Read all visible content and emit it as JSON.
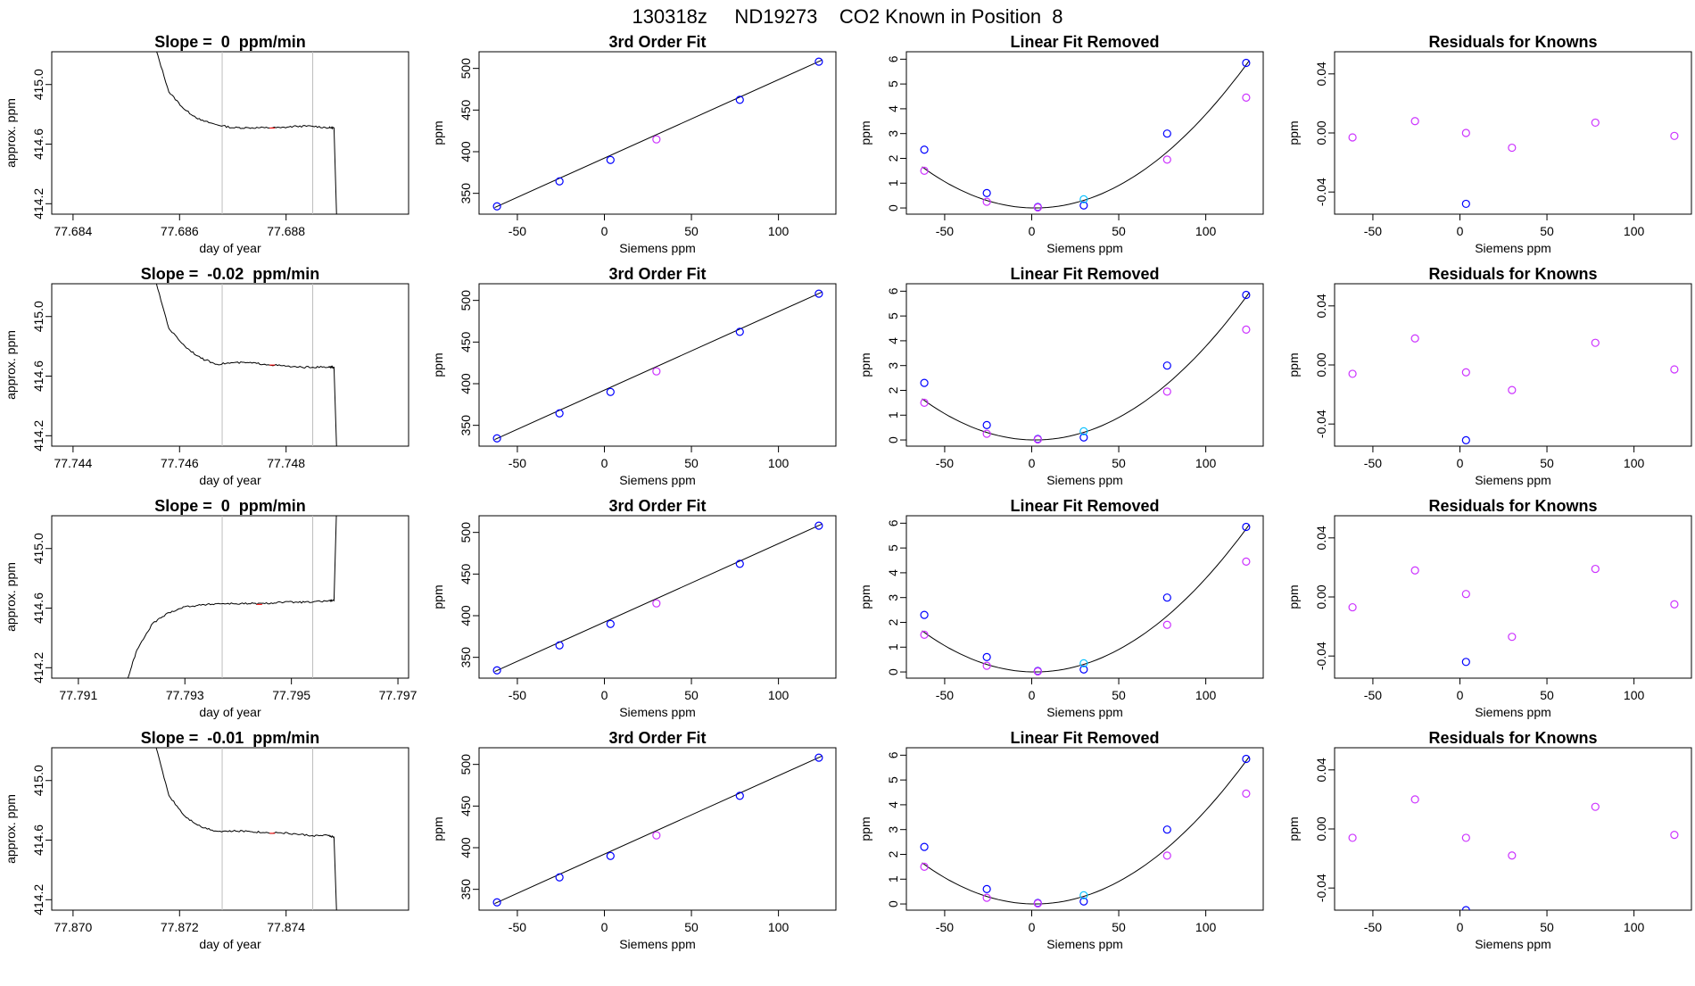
{
  "page_title": "130318z     ND19273    CO2 Known in Position  8",
  "colors": {
    "trace": "#000000",
    "guide_line": "#bebebe",
    "cursor_mark": "#ff0000",
    "known_point": "#0000ff",
    "light_point": "#00bfff",
    "magenta_point": "#cc33ff",
    "fit_curve": "#000000"
  },
  "x_axis_label_siemens": "Siemens ppm",
  "x_axis_label_day": "day of year",
  "chart_data": [
    {
      "type": "line",
      "title": "Slope =  0  ppm/min",
      "xlabel": "day of year",
      "ylabel": "approx. ppm",
      "xlim": [
        77.6836,
        77.6903
      ],
      "ylim": [
        414.13,
        415.22
      ],
      "xticks": [
        "77.684",
        "77.686",
        "77.688"
      ],
      "yticks": [
        "414.2",
        "414.6",
        "415.0"
      ],
      "vlines": [
        77.6868,
        77.6885
      ],
      "x": [
        77.6855,
        77.6858,
        77.6861,
        77.6864,
        77.6867,
        77.687,
        77.6873,
        77.6876,
        77.6879,
        77.6882,
        77.6885,
        77.6888,
        77.6889,
        77.68895
      ],
      "y": [
        415.3,
        414.95,
        414.83,
        414.76,
        414.73,
        414.71,
        414.71,
        414.71,
        414.71,
        414.72,
        414.72,
        414.71,
        414.71,
        414.1
      ]
    },
    {
      "type": "scatter",
      "title": "3rd Order Fit",
      "xlabel": "Siemens ppm",
      "ylabel": "ppm",
      "xlim": [
        -72,
        133
      ],
      "ylim": [
        325,
        520
      ],
      "xticks": [
        -50,
        0,
        50,
        100
      ],
      "yticks": [
        350,
        400,
        450,
        500
      ],
      "series": [
        {
          "color": "blue",
          "x": [
            -61.7,
            -25.8,
            3.5,
            77.8,
            123.2
          ],
          "y": [
            334.4,
            364.4,
            390.1,
            462.3,
            508.1
          ]
        },
        {
          "color": "magenta",
          "x": [
            29.9
          ],
          "y": [
            414.8
          ]
        }
      ],
      "fit_line": [
        [
          -63,
          333
        ],
        [
          125,
          510
        ]
      ]
    },
    {
      "type": "scatter",
      "title": "Linear Fit Removed",
      "xlabel": "Siemens ppm",
      "ylabel": "ppm",
      "xlim": [
        -72,
        133
      ],
      "ylim": [
        -0.25,
        6.3
      ],
      "xticks": [
        -50,
        0,
        50,
        100
      ],
      "yticks": [
        0,
        1,
        2,
        3,
        4,
        5,
        6
      ],
      "series": [
        {
          "color": "blue",
          "x": [
            -61.7,
            -25.8,
            3.5,
            29.9,
            77.8,
            123.2
          ],
          "y": [
            2.35,
            0.6,
            0.04,
            0.1,
            3.0,
            5.85
          ]
        },
        {
          "color": "light",
          "x": [
            29.9
          ],
          "y": [
            0.35
          ]
        },
        {
          "color": "magenta",
          "x": [
            -61.7,
            -25.8,
            3.5,
            77.8,
            123.2
          ],
          "y": [
            1.5,
            0.25,
            0.02,
            1.95,
            4.45
          ]
        }
      ],
      "fit_curve": {
        "a": 0.000393,
        "vertex": 2,
        "xmin": -63,
        "xmax": 125
      }
    },
    {
      "type": "scatter",
      "title": "Residuals for Knowns",
      "xlabel": "Siemens ppm",
      "ylabel": "ppm",
      "xlim": [
        -72,
        133
      ],
      "ylim": [
        -0.055,
        0.055
      ],
      "xticks": [
        -50,
        0,
        50,
        100
      ],
      "yticks": [
        "-0.04",
        "0.00",
        "0.04"
      ],
      "series": [
        {
          "color": "magenta",
          "x": [
            -61.7,
            -25.8,
            3.5,
            29.9,
            77.8,
            123.2
          ],
          "y": [
            -0.003,
            0.008,
            0.0,
            -0.01,
            0.007,
            -0.002
          ]
        },
        {
          "color": "blue",
          "x": [
            3.5
          ],
          "y": [
            -0.048
          ]
        }
      ]
    },
    {
      "type": "line",
      "title": "Slope =  -0.02  ppm/min",
      "xlabel": "day of year",
      "ylabel": "approx. ppm",
      "xlim": [
        77.7436,
        77.7503
      ],
      "ylim": [
        414.13,
        415.22
      ],
      "xticks": [
        "77.744",
        "77.746",
        "77.748"
      ],
      "yticks": [
        "414.2",
        "414.6",
        "415.0"
      ],
      "vlines": [
        77.7468,
        77.7485
      ],
      "x": [
        77.7455,
        77.7458,
        77.7461,
        77.7464,
        77.7467,
        77.747,
        77.7473,
        77.7476,
        77.7479,
        77.7482,
        77.7485,
        77.7488,
        77.7489,
        77.74895
      ],
      "y": [
        415.3,
        414.92,
        414.8,
        414.72,
        414.68,
        414.69,
        414.69,
        414.68,
        414.67,
        414.66,
        414.66,
        414.66,
        414.66,
        414.1
      ]
    },
    {
      "type": "scatter",
      "title": "3rd Order Fit",
      "xlabel": "Siemens ppm",
      "ylabel": "ppm",
      "xlim": [
        -72,
        133
      ],
      "ylim": [
        325,
        520
      ],
      "xticks": [
        -50,
        0,
        50,
        100
      ],
      "yticks": [
        350,
        400,
        450,
        500
      ],
      "series": [
        {
          "color": "blue",
          "x": [
            -61.7,
            -25.8,
            3.5,
            77.8,
            123.2
          ],
          "y": [
            334.4,
            364.4,
            390.1,
            462.3,
            508.1
          ]
        },
        {
          "color": "magenta",
          "x": [
            29.9
          ],
          "y": [
            414.8
          ]
        }
      ],
      "fit_line": [
        [
          -63,
          333
        ],
        [
          125,
          510
        ]
      ]
    },
    {
      "type": "scatter",
      "title": "Linear Fit Removed",
      "xlabel": "Siemens ppm",
      "ylabel": "ppm",
      "xlim": [
        -72,
        133
      ],
      "ylim": [
        -0.25,
        6.3
      ],
      "xticks": [
        -50,
        0,
        50,
        100
      ],
      "yticks": [
        0,
        1,
        2,
        3,
        4,
        5,
        6
      ],
      "series": [
        {
          "color": "blue",
          "x": [
            -61.7,
            -25.8,
            3.5,
            29.9,
            77.8,
            123.2
          ],
          "y": [
            2.3,
            0.6,
            0.04,
            0.1,
            3.0,
            5.85
          ]
        },
        {
          "color": "light",
          "x": [
            29.9
          ],
          "y": [
            0.35
          ]
        },
        {
          "color": "magenta",
          "x": [
            -61.7,
            -25.8,
            3.5,
            77.8,
            123.2
          ],
          "y": [
            1.5,
            0.25,
            0.02,
            1.95,
            4.45
          ]
        }
      ],
      "fit_curve": {
        "a": 0.000393,
        "vertex": 2,
        "xmin": -63,
        "xmax": 125
      }
    },
    {
      "type": "scatter",
      "title": "Residuals for Knowns",
      "xlabel": "Siemens ppm",
      "ylabel": "ppm",
      "xlim": [
        -72,
        133
      ],
      "ylim": [
        -0.055,
        0.055
      ],
      "xticks": [
        -50,
        0,
        50,
        100
      ],
      "yticks": [
        "-0.04",
        "0.00",
        "0.04"
      ],
      "series": [
        {
          "color": "magenta",
          "x": [
            -61.7,
            -25.8,
            3.5,
            29.9,
            77.8,
            123.2
          ],
          "y": [
            -0.006,
            0.018,
            -0.005,
            -0.017,
            0.015,
            -0.003
          ]
        },
        {
          "color": "blue",
          "x": [
            3.5
          ],
          "y": [
            -0.051
          ]
        }
      ]
    },
    {
      "type": "line",
      "title": "Slope =  0  ppm/min",
      "xlabel": "day of year",
      "ylabel": "approx. ppm",
      "xlim": [
        77.7905,
        77.7972
      ],
      "ylim": [
        414.13,
        415.22
      ],
      "xticks": [
        "77.791",
        "77.793",
        "77.795",
        "77.797"
      ],
      "yticks": [
        "414.2",
        "414.6",
        "415.0"
      ],
      "vlines": [
        77.7937,
        77.7954
      ],
      "x": [
        77.7919,
        77.7921,
        77.7924,
        77.7927,
        77.793,
        77.7933,
        77.7936,
        77.7939,
        77.7942,
        77.7945,
        77.7948,
        77.7951,
        77.7954,
        77.7957,
        77.7958,
        77.79585
      ],
      "y": [
        414.1,
        414.32,
        414.5,
        414.57,
        414.61,
        414.62,
        414.63,
        414.63,
        414.63,
        414.63,
        414.64,
        414.64,
        414.64,
        414.65,
        414.65,
        415.3
      ]
    },
    {
      "type": "scatter",
      "title": "3rd Order Fit",
      "xlabel": "Siemens ppm",
      "ylabel": "ppm",
      "xlim": [
        -72,
        133
      ],
      "ylim": [
        325,
        520
      ],
      "xticks": [
        -50,
        0,
        50,
        100
      ],
      "yticks": [
        350,
        400,
        450,
        500
      ],
      "series": [
        {
          "color": "blue",
          "x": [
            -61.7,
            -25.8,
            3.5,
            77.8,
            123.2
          ],
          "y": [
            334.4,
            364.4,
            390.1,
            462.3,
            508.1
          ]
        },
        {
          "color": "magenta",
          "x": [
            29.9
          ],
          "y": [
            414.8
          ]
        }
      ],
      "fit_line": [
        [
          -63,
          333
        ],
        [
          125,
          510
        ]
      ]
    },
    {
      "type": "scatter",
      "title": "Linear Fit Removed",
      "xlabel": "Siemens ppm",
      "ylabel": "ppm",
      "xlim": [
        -72,
        133
      ],
      "ylim": [
        -0.25,
        6.3
      ],
      "xticks": [
        -50,
        0,
        50,
        100
      ],
      "yticks": [
        0,
        1,
        2,
        3,
        4,
        5,
        6
      ],
      "series": [
        {
          "color": "blue",
          "x": [
            -61.7,
            -25.8,
            3.5,
            29.9,
            77.8,
            123.2
          ],
          "y": [
            2.3,
            0.6,
            0.04,
            0.1,
            3.0,
            5.85
          ]
        },
        {
          "color": "light",
          "x": [
            29.9
          ],
          "y": [
            0.35
          ]
        },
        {
          "color": "magenta",
          "x": [
            -61.7,
            -25.8,
            3.5,
            77.8,
            123.2
          ],
          "y": [
            1.5,
            0.25,
            0.02,
            1.9,
            4.45
          ]
        }
      ],
      "fit_curve": {
        "a": 0.000393,
        "vertex": 2,
        "xmin": -63,
        "xmax": 125
      }
    },
    {
      "type": "scatter",
      "title": "Residuals for Knowns",
      "xlabel": "Siemens ppm",
      "ylabel": "ppm",
      "xlim": [
        -72,
        133
      ],
      "ylim": [
        -0.055,
        0.055
      ],
      "xticks": [
        -50,
        0,
        50,
        100
      ],
      "yticks": [
        "-0.04",
        "0.00",
        "0.04"
      ],
      "series": [
        {
          "color": "magenta",
          "x": [
            -61.7,
            -25.8,
            3.5,
            29.9,
            77.8,
            123.2
          ],
          "y": [
            -0.007,
            0.018,
            0.002,
            -0.027,
            0.019,
            -0.005
          ]
        },
        {
          "color": "blue",
          "x": [
            3.5
          ],
          "y": [
            -0.044
          ]
        }
      ]
    },
    {
      "type": "line",
      "title": "Slope =  -0.01  ppm/min",
      "xlabel": "day of year",
      "ylabel": "approx. ppm",
      "xlim": [
        77.8696,
        77.8763
      ],
      "ylim": [
        414.13,
        415.22
      ],
      "xticks": [
        "77.870",
        "77.872",
        "77.874"
      ],
      "yticks": [
        "414.2",
        "414.6",
        "415.0"
      ],
      "vlines": [
        77.8728,
        77.8745
      ],
      "x": [
        77.8715,
        77.8718,
        77.8721,
        77.8724,
        77.8727,
        77.873,
        77.8733,
        77.8736,
        77.8739,
        77.8742,
        77.8745,
        77.8748,
        77.8749,
        77.87495
      ],
      "y": [
        415.3,
        414.9,
        414.76,
        414.69,
        414.66,
        414.66,
        414.66,
        414.65,
        414.65,
        414.64,
        414.63,
        414.63,
        414.62,
        414.1
      ]
    },
    {
      "type": "scatter",
      "title": "3rd Order Fit",
      "xlabel": "Siemens ppm",
      "ylabel": "ppm",
      "xlim": [
        -72,
        133
      ],
      "ylim": [
        325,
        520
      ],
      "xticks": [
        -50,
        0,
        50,
        100
      ],
      "yticks": [
        350,
        400,
        450,
        500
      ],
      "series": [
        {
          "color": "blue",
          "x": [
            -61.7,
            -25.8,
            3.5,
            77.8,
            123.2
          ],
          "y": [
            334.4,
            364.4,
            390.1,
            462.3,
            508.1
          ]
        },
        {
          "color": "magenta",
          "x": [
            29.9
          ],
          "y": [
            414.8
          ]
        }
      ],
      "fit_line": [
        [
          -63,
          333
        ],
        [
          125,
          510
        ]
      ]
    },
    {
      "type": "scatter",
      "title": "Linear Fit Removed",
      "xlabel": "Siemens ppm",
      "ylabel": "ppm",
      "xlim": [
        -72,
        133
      ],
      "ylim": [
        -0.25,
        6.3
      ],
      "xticks": [
        -50,
        0,
        50,
        100
      ],
      "yticks": [
        0,
        1,
        2,
        3,
        4,
        5,
        6
      ],
      "series": [
        {
          "color": "blue",
          "x": [
            -61.7,
            -25.8,
            3.5,
            29.9,
            77.8,
            123.2
          ],
          "y": [
            2.3,
            0.6,
            0.04,
            0.1,
            3.0,
            5.85
          ]
        },
        {
          "color": "light",
          "x": [
            29.9
          ],
          "y": [
            0.35
          ]
        },
        {
          "color": "magenta",
          "x": [
            -61.7,
            -25.8,
            3.5,
            77.8,
            123.2
          ],
          "y": [
            1.5,
            0.25,
            0.02,
            1.95,
            4.45
          ]
        }
      ],
      "fit_curve": {
        "a": 0.000393,
        "vertex": 2,
        "xmin": -63,
        "xmax": 125
      }
    },
    {
      "type": "scatter",
      "title": "Residuals for Knowns",
      "xlabel": "Siemens ppm",
      "ylabel": "ppm",
      "xlim": [
        -72,
        133
      ],
      "ylim": [
        -0.055,
        0.055
      ],
      "xticks": [
        -50,
        0,
        50,
        100
      ],
      "yticks": [
        "-0.04",
        "0.00",
        "0.04"
      ],
      "series": [
        {
          "color": "magenta",
          "x": [
            -61.7,
            -25.8,
            3.5,
            29.9,
            77.8,
            123.2
          ],
          "y": [
            -0.006,
            0.02,
            -0.006,
            -0.018,
            0.015,
            -0.004
          ]
        },
        {
          "color": "blue",
          "x": [
            3.5
          ],
          "y": [
            -0.055
          ]
        }
      ]
    }
  ]
}
